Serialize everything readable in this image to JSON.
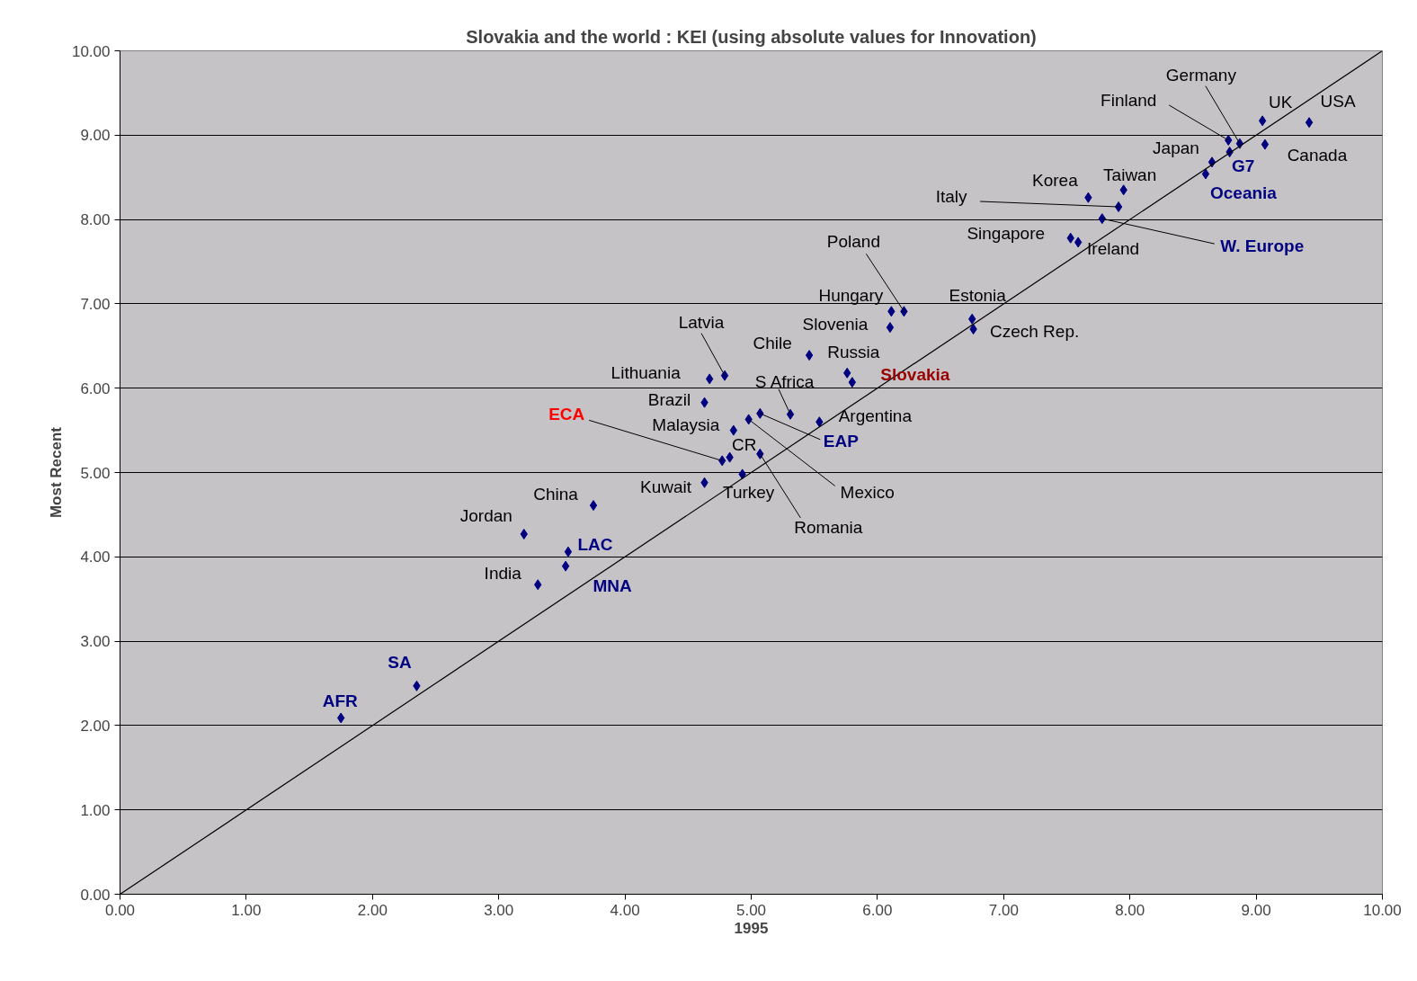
{
  "chart_data": {
    "type": "scatter",
    "title": "Slovakia and the world : KEI (using absolute values for Innovation)",
    "xlabel": "1995",
    "ylabel": "Most Recent",
    "xlim": [
      0,
      10
    ],
    "ylim": [
      0,
      10
    ],
    "xticks": [
      {
        "value": 0,
        "label": "0.00"
      },
      {
        "value": 1,
        "label": "1.00"
      },
      {
        "value": 2,
        "label": "2.00"
      },
      {
        "value": 3,
        "label": "3.00"
      },
      {
        "value": 4,
        "label": "4.00"
      },
      {
        "value": 5,
        "label": "5.00"
      },
      {
        "value": 6,
        "label": "6.00"
      },
      {
        "value": 7,
        "label": "7.00"
      },
      {
        "value": 8,
        "label": "8.00"
      },
      {
        "value": 9,
        "label": "9.00"
      },
      {
        "value": 10,
        "label": "10.00"
      }
    ],
    "yticks": [
      {
        "value": 0,
        "label": "0.00"
      },
      {
        "value": 1,
        "label": "1.00"
      },
      {
        "value": 2,
        "label": "2.00"
      },
      {
        "value": 3,
        "label": "3.00"
      },
      {
        "value": 4,
        "label": "4.00"
      },
      {
        "value": 5,
        "label": "5.00"
      },
      {
        "value": 6,
        "label": "6.00"
      },
      {
        "value": 7,
        "label": "7.00"
      },
      {
        "value": 8,
        "label": "8.00"
      },
      {
        "value": 9,
        "label": "9.00"
      },
      {
        "value": 10,
        "label": "10.00"
      }
    ],
    "grid": "y",
    "marker": "diamond",
    "series": [
      {
        "name": "USA",
        "color": "#000080",
        "x": [
          9.42
        ],
        "values": [
          9.15
        ]
      },
      {
        "name": "UK",
        "color": "#000080",
        "x": [
          9.05
        ],
        "values": [
          9.17
        ]
      },
      {
        "name": "Canada",
        "color": "#000080",
        "x": [
          9.07
        ],
        "values": [
          8.89
        ]
      },
      {
        "name": "Germany",
        "color": "#000080",
        "x": [
          8.87
        ],
        "values": [
          8.9
        ]
      },
      {
        "name": "Finland",
        "color": "#000080",
        "x": [
          8.78
        ],
        "values": [
          8.94
        ]
      },
      {
        "name": "Japan",
        "color": "#000080",
        "x": [
          8.65
        ],
        "values": [
          8.68
        ]
      },
      {
        "name": "G7",
        "color": "#000080",
        "x": [
          8.79
        ],
        "values": [
          8.8
        ]
      },
      {
        "name": "Oceania",
        "color": "#000080",
        "x": [
          8.6
        ],
        "values": [
          8.54
        ]
      },
      {
        "name": "Taiwan",
        "color": "#000080",
        "x": [
          7.95
        ],
        "values": [
          8.35
        ]
      },
      {
        "name": "Korea",
        "color": "#000080",
        "x": [
          7.67
        ],
        "values": [
          8.26
        ]
      },
      {
        "name": "Italy",
        "color": "#000080",
        "x": [
          7.91
        ],
        "values": [
          8.15
        ]
      },
      {
        "name": "W. Europe",
        "color": "#000080",
        "x": [
          7.78
        ],
        "values": [
          8.01
        ]
      },
      {
        "name": "Singapore",
        "color": "#000080",
        "x": [
          7.53
        ],
        "values": [
          7.78
        ]
      },
      {
        "name": "Ireland",
        "color": "#000080",
        "x": [
          7.59
        ],
        "values": [
          7.73
        ]
      },
      {
        "name": "Estonia",
        "color": "#000080",
        "x": [
          6.75
        ],
        "values": [
          6.82
        ]
      },
      {
        "name": "Czech Rep.",
        "color": "#000080",
        "x": [
          6.76
        ],
        "values": [
          6.7
        ]
      },
      {
        "name": "Poland",
        "color": "#000080",
        "x": [
          6.21
        ],
        "values": [
          6.91
        ]
      },
      {
        "name": "Hungary",
        "color": "#000080",
        "x": [
          6.11
        ],
        "values": [
          6.91
        ]
      },
      {
        "name": "Slovenia",
        "color": "#000080",
        "x": [
          6.1
        ],
        "values": [
          6.72
        ]
      },
      {
        "name": "Chile",
        "color": "#000080",
        "x": [
          5.46
        ],
        "values": [
          6.39
        ]
      },
      {
        "name": "Russia",
        "color": "#000080",
        "x": [
          5.76
        ],
        "values": [
          6.18
        ]
      },
      {
        "name": "Slovakia",
        "color": "#000080",
        "x": [
          5.8
        ],
        "values": [
          6.07
        ]
      },
      {
        "name": "Latvia",
        "color": "#000080",
        "x": [
          4.79
        ],
        "values": [
          6.15
        ]
      },
      {
        "name": "Lithuania",
        "color": "#000080",
        "x": [
          4.67
        ],
        "values": [
          6.11
        ]
      },
      {
        "name": "Brazil",
        "color": "#000080",
        "x": [
          4.63
        ],
        "values": [
          5.83
        ]
      },
      {
        "name": "S Africa",
        "color": "#000080",
        "x": [
          5.31
        ],
        "values": [
          5.69
        ]
      },
      {
        "name": "EAP",
        "color": "#000080",
        "x": [
          5.07
        ],
        "values": [
          5.7
        ]
      },
      {
        "name": "Mexico",
        "color": "#000080",
        "x": [
          4.98
        ],
        "values": [
          5.63
        ]
      },
      {
        "name": "Argentina",
        "color": "#000080",
        "x": [
          5.54
        ],
        "values": [
          5.6
        ]
      },
      {
        "name": "Malaysia",
        "color": "#000080",
        "x": [
          4.86
        ],
        "values": [
          5.5
        ]
      },
      {
        "name": "ECA",
        "color": "#000080",
        "x": [
          4.77
        ],
        "values": [
          5.14
        ]
      },
      {
        "name": "CR",
        "color": "#000080",
        "x": [
          4.83
        ],
        "values": [
          5.18
        ]
      },
      {
        "name": "Romania",
        "color": "#000080",
        "x": [
          5.07
        ],
        "values": [
          5.22
        ]
      },
      {
        "name": "Turkey",
        "color": "#000080",
        "x": [
          4.93
        ],
        "values": [
          4.98
        ]
      },
      {
        "name": "Kuwait",
        "color": "#000080",
        "x": [
          4.63
        ],
        "values": [
          4.88
        ]
      },
      {
        "name": "China",
        "color": "#000080",
        "x": [
          3.75
        ],
        "values": [
          4.61
        ]
      },
      {
        "name": "Jordan",
        "color": "#000080",
        "x": [
          3.2
        ],
        "values": [
          4.27
        ]
      },
      {
        "name": "LAC",
        "color": "#000080",
        "x": [
          3.55
        ],
        "values": [
          4.06
        ]
      },
      {
        "name": "MNA",
        "color": "#000080",
        "x": [
          3.53
        ],
        "values": [
          3.89
        ]
      },
      {
        "name": "India",
        "color": "#000080",
        "x": [
          3.31
        ],
        "values": [
          3.67
        ]
      },
      {
        "name": "SA",
        "color": "#000080",
        "x": [
          2.35
        ],
        "values": [
          2.47
        ]
      },
      {
        "name": "AFR",
        "color": "#000080",
        "x": [
          1.75
        ],
        "values": [
          2.09
        ]
      },
      {
        "type": "line",
        "marker": "none",
        "color": "#000000",
        "x": [
          0,
          10
        ],
        "values": [
          0,
          10
        ]
      }
    ]
  }
}
